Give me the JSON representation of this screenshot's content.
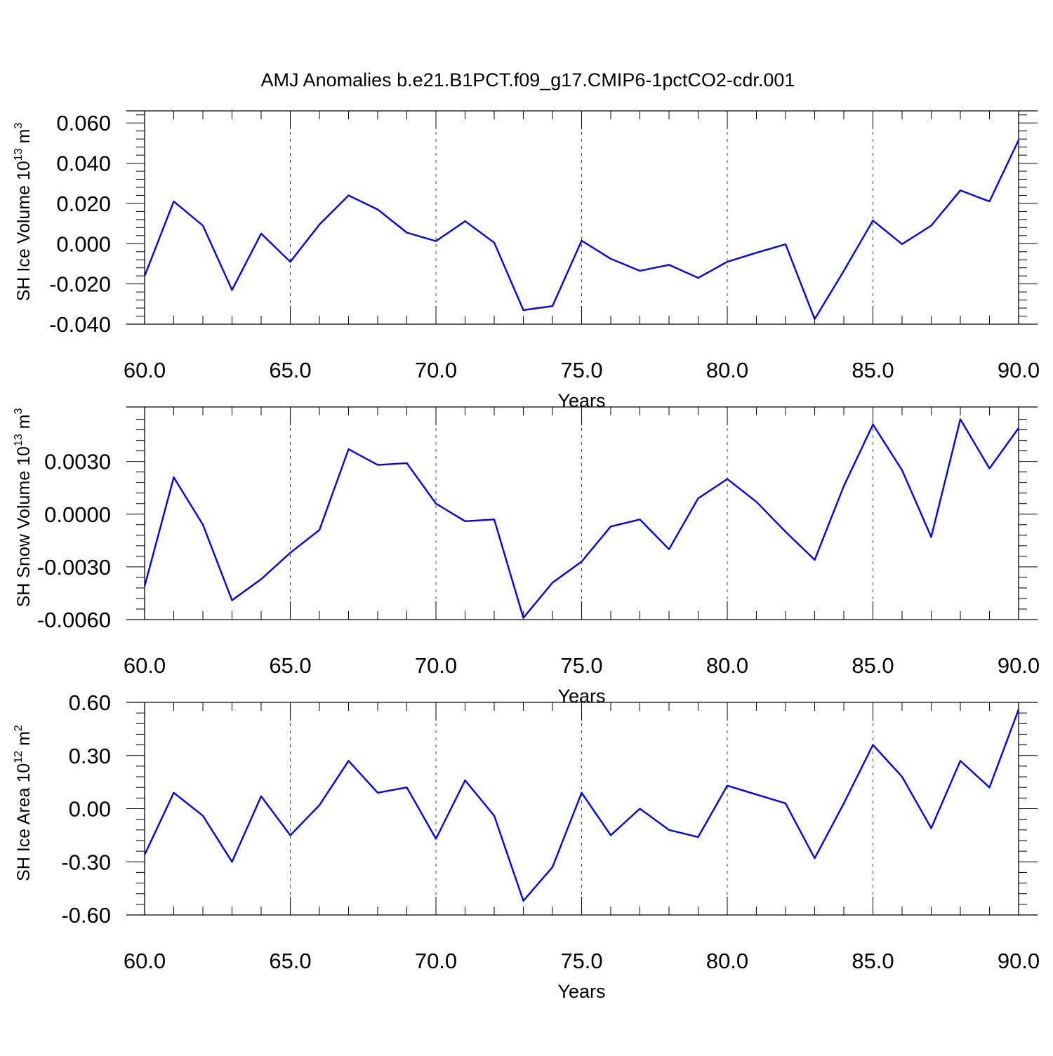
{
  "title": "AMJ Anomalies b.e21.B1PCT.f09_g17.CMIP6-1pctCO2-cdr.001",
  "chart_data": [
    {
      "type": "line",
      "ylabel": "SH Ice Volume 10",
      "ylabel_exp": "13",
      "ylabel_unit": " m",
      "ylabel_unit_exp": "3",
      "xlabel": "Years",
      "xlim": [
        60,
        90
      ],
      "ylim": [
        -0.04,
        0.066
      ],
      "yticks": [
        -0.04,
        -0.02,
        0.0,
        0.02,
        0.04,
        0.06
      ],
      "ytick_labels": [
        "-0.040",
        "-0.020",
        "0.000",
        "0.020",
        "0.040",
        "0.060"
      ],
      "xticks": [
        60,
        65,
        70,
        75,
        80,
        85,
        90
      ],
      "xtick_labels": [
        "60.0",
        "65.0",
        "70.0",
        "75.0",
        "80.0",
        "85.0",
        "90.0"
      ],
      "grid": "vertical-dashed",
      "color": "#0000ff",
      "x": [
        60,
        61,
        62,
        63,
        64,
        65,
        66,
        67,
        68,
        69,
        70,
        71,
        72,
        73,
        74,
        75,
        76,
        77,
        78,
        79,
        80,
        81,
        82,
        83,
        84,
        85,
        86,
        87,
        88,
        89,
        90
      ],
      "y": [
        -0.016,
        0.021,
        0.009,
        -0.023,
        0.005,
        -0.009,
        0.0095,
        0.024,
        0.017,
        0.0055,
        0.0013,
        0.0112,
        0.0005,
        -0.033,
        -0.031,
        0.0015,
        -0.0075,
        -0.0135,
        -0.0105,
        -0.017,
        -0.009,
        -0.0045,
        -0.0003,
        -0.0375,
        -0.0135,
        0.0115,
        -0.0002,
        0.009,
        0.0265,
        0.021,
        0.0515
      ]
    },
    {
      "type": "line",
      "ylabel": "SH Snow Volume 10",
      "ylabel_exp": "13",
      "ylabel_unit": " m",
      "ylabel_unit_exp": "3",
      "xlabel": "Years",
      "xlim": [
        60,
        90
      ],
      "ylim": [
        -0.006,
        0.0061
      ],
      "yticks": [
        -0.006,
        -0.003,
        0.0,
        0.003
      ],
      "ytick_labels": [
        "-0.0060",
        "-0.0030",
        "0.0000",
        "0.0030"
      ],
      "xticks": [
        60,
        65,
        70,
        75,
        80,
        85,
        90
      ],
      "xtick_labels": [
        "60.0",
        "65.0",
        "70.0",
        "75.0",
        "80.0",
        "85.0",
        "90.0"
      ],
      "grid": "vertical-dashed",
      "color": "#0000ff",
      "x": [
        60,
        61,
        62,
        63,
        64,
        65,
        66,
        67,
        68,
        69,
        70,
        71,
        72,
        73,
        74,
        75,
        76,
        77,
        78,
        79,
        80,
        81,
        82,
        83,
        84,
        85,
        86,
        87,
        88,
        89,
        90
      ],
      "y": [
        -0.0041,
        0.0021,
        -0.0006,
        -0.0049,
        -0.0037,
        -0.0022,
        -0.0009,
        0.0037,
        0.0028,
        0.0029,
        0.0006,
        -0.0004,
        -0.0003,
        -0.0059,
        -0.0039,
        -0.0027,
        -0.0007,
        -0.0003,
        -0.002,
        0.0009,
        0.002,
        0.0007,
        -0.001,
        -0.0026,
        0.0016,
        0.0051,
        0.0025,
        -0.0013,
        0.0054,
        0.0026,
        0.0049
      ]
    },
    {
      "type": "line",
      "ylabel": "SH Ice Area 10",
      "ylabel_exp": "12",
      "ylabel_unit": " m",
      "ylabel_unit_exp": "2",
      "xlabel": "Years",
      "xlim": [
        60,
        90
      ],
      "ylim": [
        -0.6,
        0.6
      ],
      "yticks": [
        -0.6,
        -0.3,
        0.0,
        0.3,
        0.6
      ],
      "ytick_labels": [
        "-0.60",
        "-0.30",
        "0.00",
        "0.30",
        "0.60"
      ],
      "xticks": [
        60,
        65,
        70,
        75,
        80,
        85,
        90
      ],
      "xtick_labels": [
        "60.0",
        "65.0",
        "70.0",
        "75.0",
        "80.0",
        "85.0",
        "90.0"
      ],
      "grid": "vertical-dashed",
      "color": "#0000ff",
      "x": [
        60,
        61,
        62,
        63,
        64,
        65,
        66,
        67,
        68,
        69,
        70,
        71,
        72,
        73,
        74,
        75,
        76,
        77,
        78,
        79,
        80,
        81,
        82,
        83,
        84,
        85,
        86,
        87,
        88,
        89,
        90
      ],
      "y": [
        -0.26,
        0.09,
        -0.04,
        -0.3,
        0.07,
        -0.15,
        0.02,
        0.27,
        0.09,
        0.12,
        -0.17,
        0.16,
        -0.04,
        -0.52,
        -0.33,
        0.09,
        -0.15,
        0.0,
        -0.12,
        -0.16,
        0.13,
        0.08,
        0.03,
        -0.28,
        0.03,
        0.36,
        0.18,
        -0.11,
        0.27,
        0.12,
        0.56
      ]
    }
  ]
}
